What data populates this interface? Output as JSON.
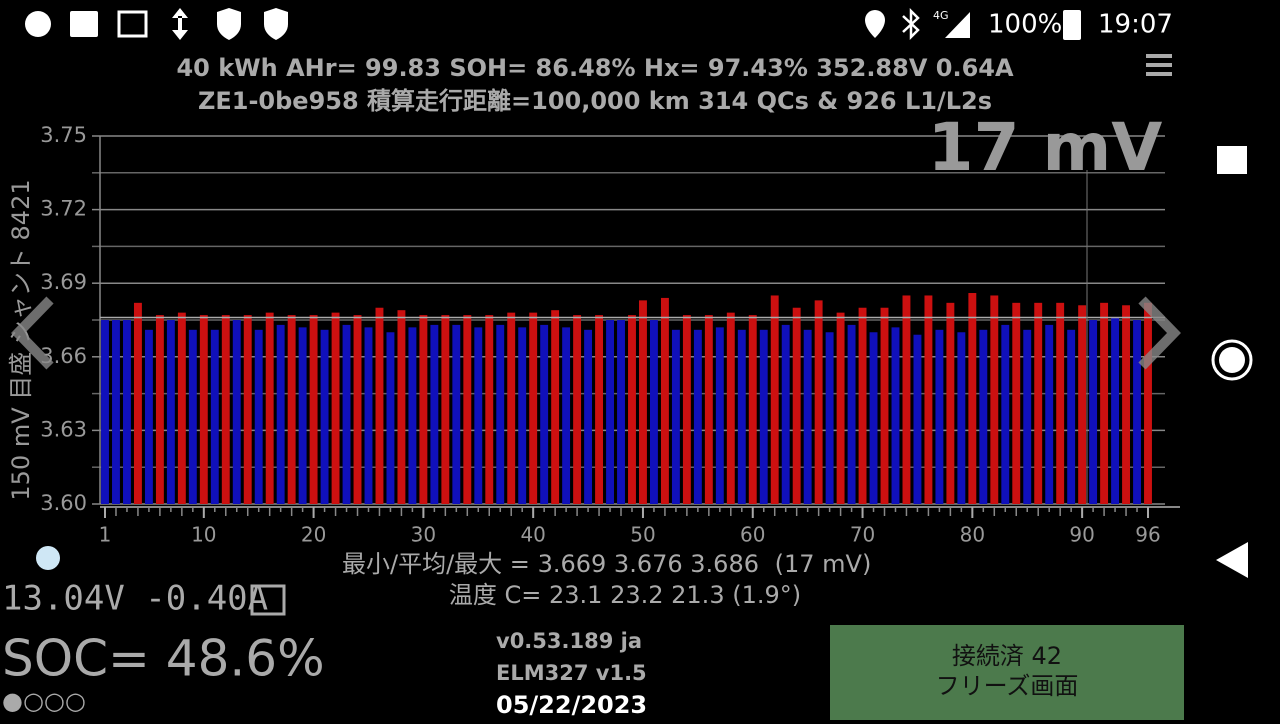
{
  "status_bar": {
    "network": "4G",
    "battery": "100%",
    "time": "19:07"
  },
  "header": {
    "line1": "40 kWh  AHr= 99.83  SOH= 86.48%   Hx= 97.43%   352.88V 0.64A",
    "line2": "ZE1-0be958 積算走行距離=100,000 km  314 QCs & 926 L1/L2s"
  },
  "chart_data": {
    "type": "bar",
    "y_label": "150 mV 目盛 シャント 8421",
    "spread_big": "17 mV",
    "x": [
      1,
      2,
      3,
      4,
      5,
      6,
      7,
      8,
      9,
      10,
      11,
      12,
      13,
      14,
      15,
      16,
      17,
      18,
      19,
      20,
      21,
      22,
      23,
      24,
      25,
      26,
      27,
      28,
      29,
      30,
      31,
      32,
      33,
      34,
      35,
      36,
      37,
      38,
      39,
      40,
      41,
      42,
      43,
      44,
      45,
      46,
      47,
      48,
      49,
      50,
      51,
      52,
      53,
      54,
      55,
      56,
      57,
      58,
      59,
      60,
      61,
      62,
      63,
      64,
      65,
      66,
      67,
      68,
      69,
      70,
      71,
      72,
      73,
      74,
      75,
      76,
      77,
      78,
      79,
      80,
      81,
      82,
      83,
      84,
      85,
      86,
      87,
      88,
      89,
      90,
      91,
      92,
      93,
      94,
      95,
      96
    ],
    "values": [
      3.675,
      3.675,
      3.675,
      3.682,
      3.671,
      3.677,
      3.675,
      3.678,
      3.671,
      3.677,
      3.671,
      3.677,
      3.675,
      3.677,
      3.671,
      3.678,
      3.673,
      3.677,
      3.672,
      3.677,
      3.671,
      3.678,
      3.673,
      3.677,
      3.672,
      3.68,
      3.67,
      3.679,
      3.672,
      3.677,
      3.673,
      3.677,
      3.673,
      3.677,
      3.672,
      3.677,
      3.673,
      3.678,
      3.672,
      3.678,
      3.673,
      3.679,
      3.672,
      3.677,
      3.671,
      3.677,
      3.675,
      3.675,
      3.677,
      3.683,
      3.675,
      3.684,
      3.671,
      3.677,
      3.671,
      3.677,
      3.672,
      3.678,
      3.671,
      3.677,
      3.671,
      3.685,
      3.673,
      3.68,
      3.671,
      3.683,
      3.67,
      3.678,
      3.673,
      3.68,
      3.67,
      3.68,
      3.672,
      3.685,
      3.669,
      3.685,
      3.671,
      3.682,
      3.67,
      3.686,
      3.671,
      3.685,
      3.673,
      3.682,
      3.671,
      3.682,
      3.673,
      3.682,
      3.671,
      3.681,
      3.675,
      3.682,
      3.676,
      3.681,
      3.675,
      3.682
    ],
    "above_color": "#cc1010",
    "below_color": "#1010bb",
    "xlim": [
      1,
      96
    ],
    "xticks": [
      1,
      10,
      20,
      30,
      40,
      50,
      60,
      70,
      80,
      90,
      96
    ],
    "ylim": [
      3.6,
      3.75
    ],
    "yticks": [
      {
        "value": 3.6,
        "label": "3.60"
      },
      3.63,
      3.66,
      3.69,
      3.72,
      3.75
    ],
    "minor_grid": [
      3.615,
      3.645,
      3.675,
      3.705,
      3.735
    ],
    "stats_label": "最小/平均/最大 =",
    "min": 3.669,
    "average": 3.676,
    "max": 3.686,
    "stats_spread": "(17 mV)",
    "temperature": "温度 C= 23.1  23.2  21.3  (1.9°)"
  },
  "footer": {
    "aux": "13.04V -0.40A",
    "soc": "SOC= 48.6%",
    "dots": "●○○○",
    "version": "v0.53.189 ja",
    "adapter": "ELM327 v1.5",
    "date": "05/22/2023",
    "status_line1": "接続済 42",
    "status_line2": "フリーズ画面"
  }
}
